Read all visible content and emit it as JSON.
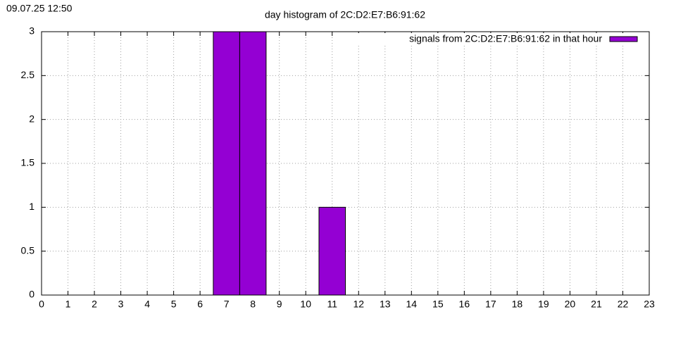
{
  "timestamp": "09.07.25 12:50",
  "chart_data": {
    "type": "bar",
    "title": "day histogram of 2C:D2:E7:B6:91:62",
    "x": [
      0,
      1,
      2,
      3,
      4,
      5,
      6,
      7,
      8,
      9,
      10,
      11,
      12,
      13,
      14,
      15,
      16,
      17,
      18,
      19,
      20,
      21,
      22
    ],
    "series": [
      {
        "name": "signals from 2C:D2:E7:B6:91:62 in that hour",
        "color": "#9400d3",
        "values": [
          0,
          0,
          0,
          0,
          0,
          0,
          0,
          3,
          3,
          0,
          0,
          1,
          0,
          0,
          0,
          0,
          0,
          0,
          0,
          0,
          0,
          0,
          0
        ]
      }
    ],
    "xlim": [
      0,
      23
    ],
    "xticks": [
      0,
      1,
      2,
      3,
      4,
      5,
      6,
      7,
      8,
      9,
      10,
      11,
      12,
      13,
      14,
      15,
      16,
      17,
      18,
      19,
      20,
      21,
      22,
      23
    ],
    "ylim": [
      0,
      3
    ],
    "yticks": [
      0,
      0.5,
      1,
      1.5,
      2,
      2.5,
      3
    ],
    "grid": true,
    "legend": "top right"
  }
}
